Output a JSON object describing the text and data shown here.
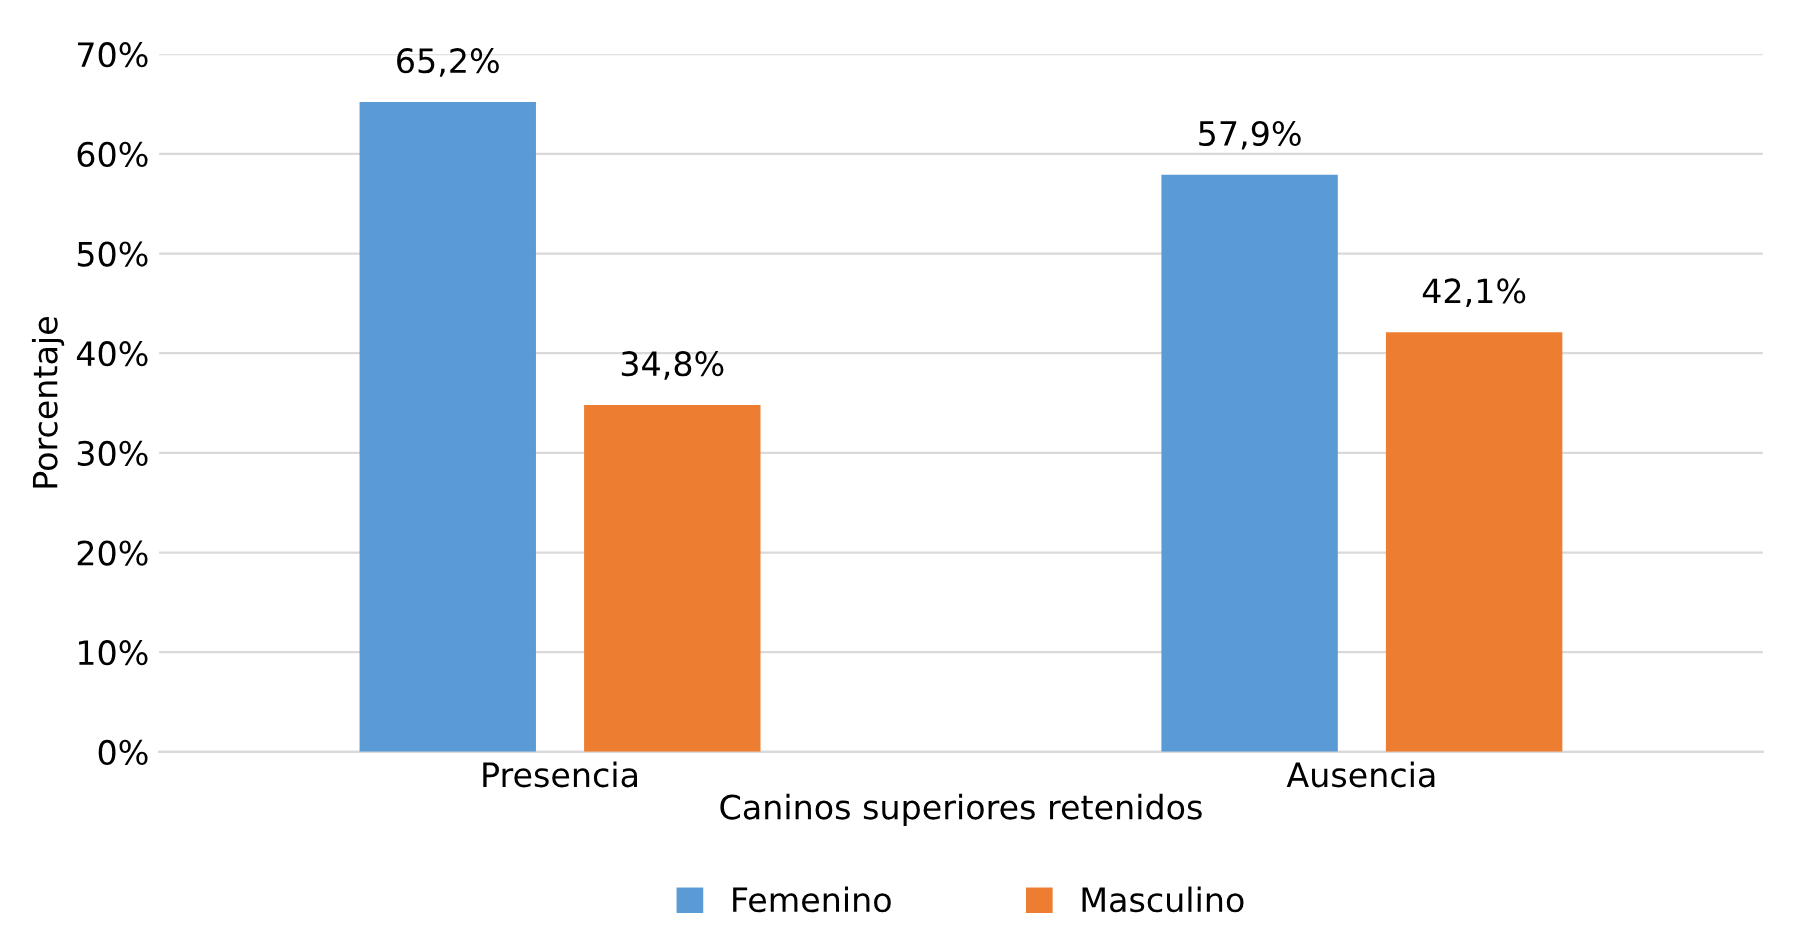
{
  "chart_data": {
    "type": "bar",
    "categories": [
      "Presencia",
      "Ausencia"
    ],
    "series": [
      {
        "name": "Femenino",
        "color": "#5b9bd5",
        "values": [
          65.2,
          57.9
        ],
        "value_labels": [
          "65,2%",
          "57,9%"
        ]
      },
      {
        "name": "Masculino",
        "color": "#ed7d31",
        "values": [
          34.8,
          42.1
        ],
        "value_labels": [
          "34,8%",
          "42,1%"
        ]
      }
    ],
    "xlabel": "Caninos superiores retenidos",
    "ylabel": "Porcentaje",
    "ylim": [
      0,
      70
    ],
    "yticks": [
      {
        "value": 0,
        "label": "0%"
      },
      {
        "value": 10,
        "label": "10%"
      },
      {
        "value": 20,
        "label": "20%"
      },
      {
        "value": 30,
        "label": "30%"
      },
      {
        "value": 40,
        "label": "40%"
      },
      {
        "value": 50,
        "label": "50%"
      },
      {
        "value": 60,
        "label": "60%"
      },
      {
        "value": 70,
        "label": "70%"
      }
    ],
    "grid": "y",
    "legend": "bottom"
  }
}
